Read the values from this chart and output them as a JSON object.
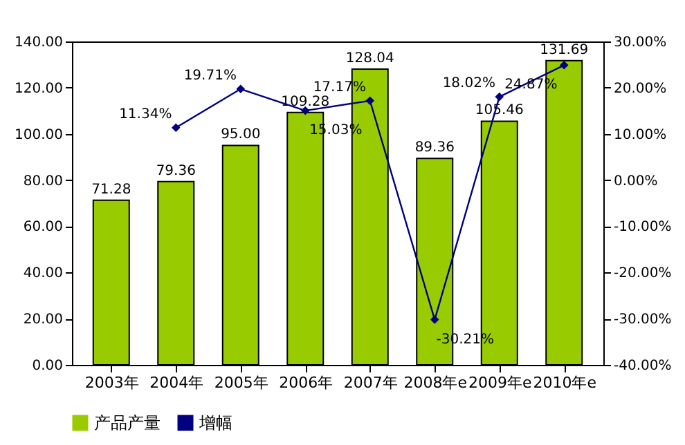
{
  "chart_data": {
    "type": "bar",
    "categories": [
      "2003年",
      "2004年",
      "2005年",
      "2006年",
      "2007年",
      "2008年e",
      "2009年e",
      "2010年e"
    ],
    "series": [
      {
        "name": "产品产量",
        "color": "#99cc00",
        "values": [
          71.28,
          79.36,
          95.0,
          109.28,
          128.04,
          89.36,
          105.46,
          131.69
        ],
        "value_labels": [
          "71.28",
          "79.36",
          "95.00",
          "109.28",
          "128.04",
          "89.36",
          "105.46",
          "131.69"
        ]
      },
      {
        "name": "增幅",
        "type": "line",
        "axis": "y2",
        "color": "#000080",
        "marker": "diamond",
        "values": [
          null,
          11.34,
          19.71,
          15.03,
          17.17,
          -30.21,
          18.02,
          24.87
        ],
        "value_labels": [
          null,
          "11.34%",
          "19.71%",
          "15.03%",
          "17.17%",
          "-30.21%",
          "18.02%",
          "24.87%"
        ]
      }
    ],
    "ylim": [
      0,
      140
    ],
    "yticks": [
      {
        "value": 0,
        "label": "0.00"
      },
      {
        "value": 20,
        "label": "20.00"
      },
      {
        "value": 40,
        "label": "40.00"
      },
      {
        "value": 60,
        "label": "60.00"
      },
      {
        "value": 80,
        "label": "80.00"
      },
      {
        "value": 100,
        "label": "100.00"
      },
      {
        "value": 120,
        "label": "120.00"
      },
      {
        "value": 140,
        "label": "140.00"
      }
    ],
    "y2lim": [
      -40,
      30
    ],
    "y2ticks": [
      {
        "value": -40,
        "label": "-40.00%"
      },
      {
        "value": -30,
        "label": "-30.00%"
      },
      {
        "value": -20,
        "label": "-20.00%"
      },
      {
        "value": -10,
        "label": "-10.00%"
      },
      {
        "value": 0,
        "label": "0.00%"
      },
      {
        "value": 10,
        "label": "10.00%"
      },
      {
        "value": 20,
        "label": "20.00%"
      },
      {
        "value": 30,
        "label": "30.00%"
      }
    ],
    "legend": "bottom",
    "grid": false
  }
}
